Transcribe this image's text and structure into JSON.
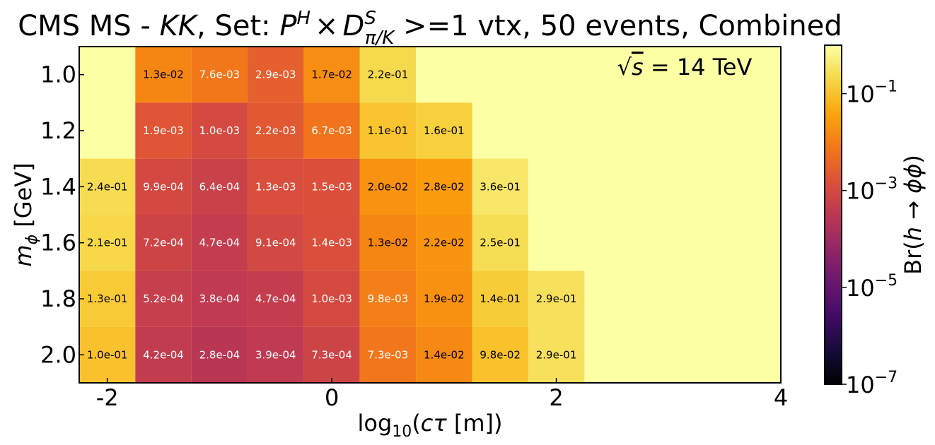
{
  "chart_data": {
    "type": "heatmap",
    "title": "CMS MS - KK, Set: P^H × D^S_{π/K} >=1 vtx, 50 events, Combined",
    "title_parts": {
      "prefix": "CMS MS - ",
      "kk": "KK",
      "set": ", Set: ",
      "P": "P",
      "H": "H",
      "times": "×",
      "D": "D",
      "S": "S",
      "sub": "π/K",
      "suffix": " >=1 vtx, 50 events, Combined"
    },
    "xlabel": "log10(cτ [m])",
    "xlabel_parts": {
      "log": "log",
      "ten": "10",
      "rest_open": "(",
      "ctau": "cτ",
      "rest_close": " [m])"
    },
    "ylabel": "m_ϕ [GeV]",
    "ylabel_parts": {
      "m": "m",
      "phi": "ϕ",
      "unit": " [GeV]"
    },
    "annotation": "√s = 14 TeV",
    "annotation_parts": {
      "sqrt": "√",
      "s": "s",
      "rest": " = 14 TeV"
    },
    "colorbar_label": "Br(h → ϕϕ)",
    "colorbar_label_parts": {
      "prefix": "Br(",
      "h": "h",
      "arrow": " → ",
      "phi": "ϕϕ",
      "suffix": ")"
    },
    "colormap": "inferno",
    "colorbar_range_log10": [
      -7,
      0
    ],
    "colorbar_ticks": [
      {
        "base": "10",
        "exp": "−1",
        "log": -1
      },
      {
        "base": "10",
        "exp": "−3",
        "log": -3
      },
      {
        "base": "10",
        "exp": "−5",
        "log": -5
      },
      {
        "base": "10",
        "exp": "−7",
        "log": -7
      }
    ],
    "background_value": 1,
    "xlim": [
      -2.25,
      4
    ],
    "x_ticks": [
      "-2",
      "0",
      "2",
      "4"
    ],
    "x_tick_values": [
      -2,
      0,
      2,
      4
    ],
    "x_bin_centers": [
      -2.0,
      -1.5,
      -1.0,
      -0.5,
      0.0,
      0.5,
      1.0,
      1.5,
      2.0
    ],
    "x_bin_width": 0.5,
    "y_categories": [
      "1.0",
      "1.2",
      "1.4",
      "1.6",
      "1.8",
      "2.0"
    ],
    "cells": [
      [
        "",
        "1.3e-02",
        "7.6e-03",
        "2.9e-03",
        "1.7e-02",
        "2.2e-01",
        "",
        "",
        ""
      ],
      [
        "",
        "1.9e-03",
        "1.0e-03",
        "2.2e-03",
        "6.7e-03",
        "1.1e-01",
        "1.6e-01",
        "",
        ""
      ],
      [
        "2.4e-01",
        "9.9e-04",
        "6.4e-04",
        "1.3e-03",
        "1.5e-03",
        "2.0e-02",
        "2.8e-02",
        "3.6e-01",
        ""
      ],
      [
        "2.1e-01",
        "7.2e-04",
        "4.7e-04",
        "9.1e-04",
        "1.4e-03",
        "1.3e-02",
        "2.2e-02",
        "2.5e-01",
        ""
      ],
      [
        "1.3e-01",
        "5.2e-04",
        "3.8e-04",
        "4.7e-04",
        "1.0e-03",
        "9.8e-03",
        "1.9e-02",
        "1.4e-01",
        "2.9e-01"
      ],
      [
        "1.0e-01",
        "4.2e-04",
        "2.8e-04",
        "3.9e-04",
        "7.3e-04",
        "7.3e-03",
        "1.4e-02",
        "9.8e-02",
        "2.9e-01"
      ]
    ]
  }
}
